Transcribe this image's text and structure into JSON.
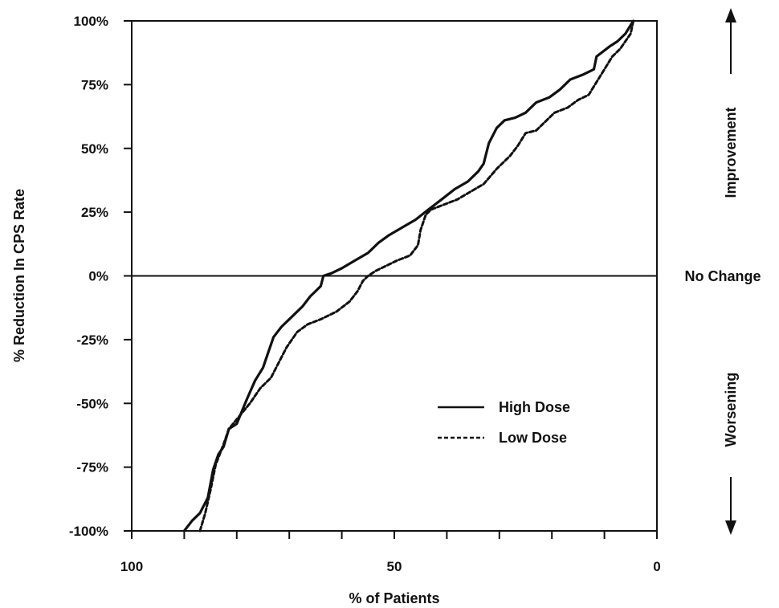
{
  "chart_data": {
    "type": "line",
    "xlabel": "% of Patients",
    "ylabel": "% Reduction In CPS Rate",
    "xlim": [
      100,
      0
    ],
    "ylim": [
      -100,
      100
    ],
    "x_ticks": [
      "100",
      "50",
      "0"
    ],
    "y_ticks": [
      "100%",
      "75%",
      "50%",
      "25%",
      "0%",
      "-25%",
      "-50%",
      "-75%",
      "-100%"
    ],
    "reference_line": {
      "y": 0,
      "label": "No Change"
    },
    "annotations": {
      "upper": "Improvement",
      "lower": "Worsening"
    },
    "legend": {
      "placement": "lower-right"
    },
    "series": [
      {
        "name": "High Dose",
        "style": "solid",
        "points": [
          [
            90,
            -100
          ],
          [
            88.5,
            -96
          ],
          [
            87,
            -93
          ],
          [
            85.5,
            -87
          ],
          [
            84.5,
            -76
          ],
          [
            83.5,
            -70
          ],
          [
            82.5,
            -67
          ],
          [
            81.5,
            -60
          ],
          [
            80,
            -58
          ],
          [
            79,
            -53
          ],
          [
            78,
            -48
          ],
          [
            76.5,
            -41
          ],
          [
            75,
            -36
          ],
          [
            74,
            -30
          ],
          [
            73,
            -24
          ],
          [
            71.5,
            -20
          ],
          [
            69.5,
            -16
          ],
          [
            67.5,
            -12
          ],
          [
            66,
            -8
          ],
          [
            65,
            -6
          ],
          [
            64,
            -4
          ],
          [
            63.5,
            0
          ],
          [
            62,
            1
          ],
          [
            60,
            3
          ],
          [
            57.5,
            6
          ],
          [
            55,
            9
          ],
          [
            53,
            13
          ],
          [
            51,
            16
          ],
          [
            48.5,
            19
          ],
          [
            46,
            22
          ],
          [
            43.5,
            26
          ],
          [
            41,
            30
          ],
          [
            38.5,
            34
          ],
          [
            36,
            37
          ],
          [
            34,
            41
          ],
          [
            33,
            44
          ],
          [
            32,
            52
          ],
          [
            30.5,
            58
          ],
          [
            29,
            61
          ],
          [
            27,
            62
          ],
          [
            25,
            64
          ],
          [
            23,
            68
          ],
          [
            20.5,
            70
          ],
          [
            18.5,
            73
          ],
          [
            16.5,
            77
          ],
          [
            14,
            79
          ],
          [
            12,
            81
          ],
          [
            11.5,
            86
          ],
          [
            9,
            90
          ],
          [
            7.5,
            92
          ],
          [
            6,
            95
          ],
          [
            4.5,
            100
          ]
        ]
      },
      {
        "name": "Low Dose",
        "style": "dashed",
        "points": [
          [
            87,
            -100
          ],
          [
            86,
            -93
          ],
          [
            85,
            -84
          ],
          [
            84,
            -74
          ],
          [
            82.5,
            -66
          ],
          [
            81.5,
            -60
          ],
          [
            79.5,
            -55
          ],
          [
            77.5,
            -50
          ],
          [
            75.5,
            -44
          ],
          [
            73.5,
            -40
          ],
          [
            72,
            -34
          ],
          [
            70.5,
            -28
          ],
          [
            68.5,
            -22
          ],
          [
            66.5,
            -19
          ],
          [
            64,
            -17
          ],
          [
            61,
            -14
          ],
          [
            58.5,
            -10
          ],
          [
            57,
            -6
          ],
          [
            56,
            -2
          ],
          [
            55,
            0
          ],
          [
            53.5,
            2
          ],
          [
            51.5,
            4
          ],
          [
            49.5,
            6
          ],
          [
            47,
            8
          ],
          [
            45.5,
            12
          ],
          [
            45,
            18
          ],
          [
            44,
            24
          ],
          [
            43,
            26
          ],
          [
            40.5,
            28
          ],
          [
            38,
            30
          ],
          [
            35.5,
            33
          ],
          [
            33,
            36
          ],
          [
            30.5,
            42
          ],
          [
            28,
            47
          ],
          [
            26.5,
            51
          ],
          [
            25,
            56
          ],
          [
            23,
            57
          ],
          [
            21,
            61
          ],
          [
            19.5,
            64
          ],
          [
            17,
            66
          ],
          [
            15,
            69
          ],
          [
            13,
            71
          ],
          [
            11.5,
            76
          ],
          [
            10,
            81
          ],
          [
            8.5,
            86
          ],
          [
            7,
            89
          ],
          [
            5,
            95
          ],
          [
            4.5,
            100
          ]
        ]
      }
    ]
  }
}
